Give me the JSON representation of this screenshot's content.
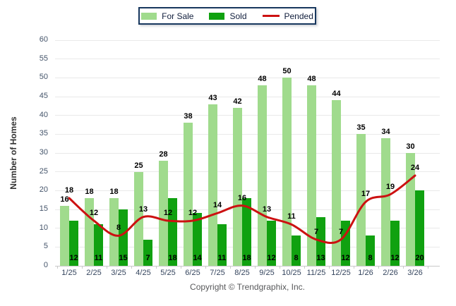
{
  "legend": {
    "items": [
      {
        "label": "For Sale",
        "type": "bar",
        "color": "#A0DB8D"
      },
      {
        "label": "Sold",
        "type": "bar",
        "color": "#10A110"
      },
      {
        "label": "Pended",
        "type": "line",
        "color": "#CC1111"
      }
    ]
  },
  "axis": {
    "y_label": "Number of Homes",
    "y_ticks": [
      0,
      5,
      10,
      15,
      20,
      25,
      30,
      35,
      40,
      45,
      50,
      55,
      60
    ]
  },
  "footer": {
    "copyright": "Copyright © Trendgraphix, Inc."
  },
  "chart_data": {
    "type": "bar",
    "title": "",
    "xlabel": "",
    "ylabel": "Number of Homes",
    "ylim": [
      0,
      60
    ],
    "y_step": 5,
    "grid": true,
    "legend_position": "top-center",
    "categories": [
      "1/25",
      "2/25",
      "3/25",
      "4/25",
      "5/25",
      "6/25",
      "7/25",
      "8/25",
      "9/25",
      "10/25",
      "11/25",
      "12/25",
      "1/26",
      "2/26",
      "3/26"
    ],
    "series": [
      {
        "name": "For Sale",
        "render": "bar",
        "color": "#A0DB8D",
        "values": [
          16,
          18,
          18,
          25,
          28,
          38,
          43,
          42,
          48,
          50,
          48,
          44,
          35,
          34,
          30
        ]
      },
      {
        "name": "Sold",
        "render": "bar",
        "color": "#10A110",
        "values": [
          12,
          11,
          15,
          7,
          18,
          14,
          11,
          18,
          12,
          8,
          13,
          12,
          8,
          12,
          20
        ]
      },
      {
        "name": "Pended",
        "render": "line",
        "color": "#CC1111",
        "values": [
          18,
          12,
          8,
          13,
          12,
          12,
          14,
          16,
          13,
          11,
          7,
          7,
          17,
          19,
          24
        ]
      }
    ]
  }
}
